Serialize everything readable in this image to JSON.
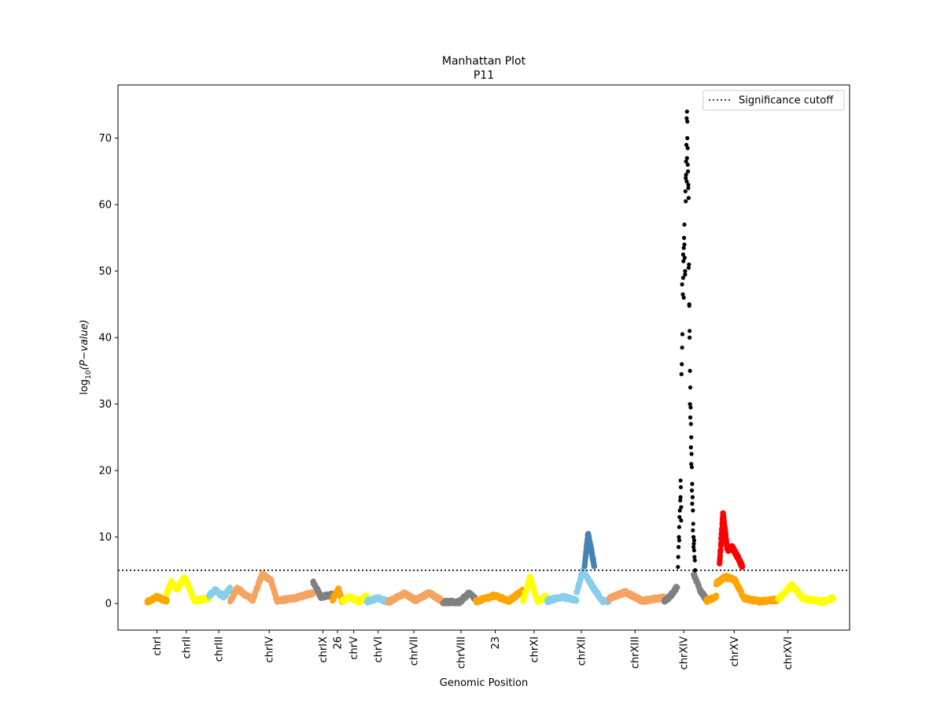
{
  "chart_data": {
    "type": "scatter",
    "title": "Manhattan Plot",
    "subtitle": "P11",
    "xlabel": "Genomic Position",
    "ylabel_parts": {
      "base": "log",
      "sub": "10",
      "expr": "(P−value)"
    },
    "ylim": [
      -4,
      78
    ],
    "yticks": [
      0,
      10,
      20,
      30,
      40,
      50,
      60,
      70
    ],
    "xlim": [
      -6,
      219
    ],
    "xticks": [
      {
        "label": "chrI",
        "pos": 6
      },
      {
        "label": "chrII",
        "pos": 15
      },
      {
        "label": "chrIII",
        "pos": 25
      },
      {
        "label": "chrIV",
        "pos": 40.5
      },
      {
        "label": "chrIX",
        "pos": 57
      },
      {
        "label": "26",
        "pos": 61.5
      },
      {
        "label": "chrV",
        "pos": 66.5
      },
      {
        "label": "chrVI",
        "pos": 74
      },
      {
        "label": "chrVII",
        "pos": 85
      },
      {
        "label": "chrVIII",
        "pos": 99.5
      },
      {
        "label": "23",
        "pos": 110
      },
      {
        "label": "chrXI",
        "pos": 122
      },
      {
        "label": "chrXII",
        "pos": 136.5
      },
      {
        "label": "chrXIII",
        "pos": 153
      },
      {
        "label": "chrXIV",
        "pos": 168
      },
      {
        "label": "chrXV",
        "pos": 183.5
      },
      {
        "label": "chrXVI",
        "pos": 200
      }
    ],
    "cutoff": {
      "y": 5,
      "label": "Significance cutoff",
      "style": "dotted",
      "color": "#000000"
    },
    "legend_position": "top-right",
    "point_color_significant_chrXIV": "#000000",
    "point_color_significant_chrXII": "#4682b4",
    "point_color_significant_chrXV": "#ff0000",
    "chromosomes": [
      {
        "name": "chrI",
        "x": [
          3,
          9
        ],
        "color": "#ffa500",
        "profile": [
          [
            0,
            0.2
          ],
          [
            0.5,
            1.0
          ],
          [
            1,
            0.4
          ]
        ]
      },
      {
        "name": "chrI-b",
        "x": [
          9,
          12.5
        ],
        "color": "#ffff00",
        "profile": [
          [
            0,
            1.5
          ],
          [
            0.4,
            3.2
          ],
          [
            1,
            2.0
          ]
        ]
      },
      {
        "name": "chrII",
        "x": [
          12.5,
          17.5
        ],
        "color": "#ffff00",
        "profile": [
          [
            0,
            2.5
          ],
          [
            0.4,
            4.0
          ],
          [
            1,
            0.4
          ]
        ]
      },
      {
        "name": "chrII-b",
        "x": [
          17.5,
          22
        ],
        "color": "#ffff00",
        "profile": [
          [
            0,
            0.4
          ],
          [
            1,
            0.8
          ]
        ]
      },
      {
        "name": "chrIII",
        "x": [
          22,
          28.5
        ],
        "color": "#87ceeb",
        "profile": [
          [
            0,
            1.2
          ],
          [
            0.3,
            2.0
          ],
          [
            0.7,
            1.0
          ],
          [
            1,
            2.3
          ]
        ]
      },
      {
        "name": "chrIV-a",
        "x": [
          28.5,
          35.5
        ],
        "color": "#f4a460",
        "profile": [
          [
            0,
            0.4
          ],
          [
            0.3,
            2.3
          ],
          [
            0.7,
            1.2
          ],
          [
            1,
            0.6
          ]
        ]
      },
      {
        "name": "chrIV",
        "x": [
          35.5,
          54
        ],
        "color": "#f4a460",
        "profile": [
          [
            0,
            0.6
          ],
          [
            0.15,
            4.4
          ],
          [
            0.3,
            3.5
          ],
          [
            0.4,
            0.4
          ],
          [
            0.7,
            0.8
          ],
          [
            1,
            1.6
          ]
        ]
      },
      {
        "name": "chrIX",
        "x": [
          54,
          60
        ],
        "color": "#808080",
        "profile": [
          [
            0,
            3.3
          ],
          [
            0.4,
            1.0
          ],
          [
            1,
            1.4
          ]
        ]
      },
      {
        "name": "26",
        "x": [
          60,
          63
        ],
        "color": "#ffa500",
        "profile": [
          [
            0,
            0.6
          ],
          [
            0.6,
            2.2
          ],
          [
            1,
            0.3
          ]
        ]
      },
      {
        "name": "chrV",
        "x": [
          63,
          70.5
        ],
        "color": "#ffff00",
        "profile": [
          [
            0,
            0.3
          ],
          [
            0.3,
            1.0
          ],
          [
            0.7,
            0.3
          ],
          [
            1,
            1.1
          ]
        ]
      },
      {
        "name": "chrVI",
        "x": [
          70.5,
          77
        ],
        "color": "#87ceeb",
        "profile": [
          [
            0,
            0.3
          ],
          [
            0.5,
            0.8
          ],
          [
            1,
            0.3
          ]
        ]
      },
      {
        "name": "chrVII",
        "x": [
          77,
          94
        ],
        "color": "#f4a460",
        "profile": [
          [
            0,
            0.2
          ],
          [
            0.3,
            1.5
          ],
          [
            0.5,
            0.5
          ],
          [
            0.75,
            1.6
          ],
          [
            1,
            0.3
          ]
        ]
      },
      {
        "name": "chrVIII",
        "x": [
          94,
          104
        ],
        "color": "#808080",
        "profile": [
          [
            0,
            0.2
          ],
          [
            0.5,
            0.2
          ],
          [
            0.8,
            1.6
          ],
          [
            1,
            0.6
          ]
        ]
      },
      {
        "name": "23",
        "x": [
          104,
          118.5
        ],
        "color": "#ffa500",
        "profile": [
          [
            0,
            0.3
          ],
          [
            0.4,
            1.2
          ],
          [
            0.7,
            0.4
          ],
          [
            1,
            1.9
          ]
        ]
      },
      {
        "name": "chrXI",
        "x": [
          118.5,
          126
        ],
        "color": "#ffff00",
        "profile": [
          [
            0,
            0.4
          ],
          [
            0.3,
            4.0
          ],
          [
            0.6,
            0.3
          ],
          [
            1,
            1.1
          ]
        ]
      },
      {
        "name": "chrXII-a",
        "x": [
          126,
          135
        ],
        "color": "#87ceeb",
        "profile": [
          [
            0,
            0.4
          ],
          [
            0.5,
            1.0
          ],
          [
            1,
            0.5
          ]
        ]
      },
      {
        "name": "chrXII",
        "x": [
          135,
          145
        ],
        "color": "#87ceeb",
        "profile": [
          [
            0,
            1.5
          ],
          [
            0.2,
            5.0
          ],
          [
            0.5,
            2.5
          ],
          [
            0.8,
            0.4
          ],
          [
            1,
            0.3
          ]
        ]
      },
      {
        "name": "chrXIII",
        "x": [
          145,
          162
        ],
        "color": "#f4a460",
        "profile": [
          [
            0,
            0.8
          ],
          [
            0.3,
            1.7
          ],
          [
            0.6,
            0.4
          ],
          [
            1,
            0.9
          ]
        ]
      },
      {
        "name": "chrXIV-a",
        "x": [
          162,
          166
        ],
        "color": "#808080",
        "profile": [
          [
            0,
            0.3
          ],
          [
            0.5,
            1.2
          ],
          [
            1,
            2.5
          ]
        ]
      },
      {
        "name": "chrXIV-b",
        "x": [
          171,
          175
        ],
        "color": "#808080",
        "profile": [
          [
            0,
            4.5
          ],
          [
            0.5,
            2.0
          ],
          [
            1,
            0.6
          ]
        ]
      },
      {
        "name": "chrXV-a",
        "x": [
          175,
          178
        ],
        "color": "#ffa500",
        "profile": [
          [
            0,
            0.4
          ],
          [
            1,
            1.0
          ]
        ]
      },
      {
        "name": "chrXV",
        "x": [
          178,
          197
        ],
        "color": "#ffa500",
        "profile": [
          [
            0,
            3.0
          ],
          [
            0.15,
            4.0
          ],
          [
            0.3,
            3.5
          ],
          [
            0.45,
            0.8
          ],
          [
            0.7,
            0.3
          ],
          [
            1,
            0.6
          ]
        ]
      },
      {
        "name": "chrXVI",
        "x": [
          197,
          214
        ],
        "color": "#ffff00",
        "profile": [
          [
            0,
            0.6
          ],
          [
            0.25,
            2.8
          ],
          [
            0.45,
            0.7
          ],
          [
            0.8,
            0.3
          ],
          [
            1,
            0.8
          ]
        ]
      }
    ],
    "significant_peaks": [
      {
        "name": "chrXII-peak",
        "x": [
          137.5,
          140.5
        ],
        "color": "#4682b4",
        "profile": [
          [
            0,
            5.5
          ],
          [
            0.35,
            10.5
          ],
          [
            0.7,
            8.0
          ],
          [
            1,
            5.5
          ]
        ]
      },
      {
        "name": "chrXV-peak",
        "x": [
          179,
          186
        ],
        "color": "#ff0000",
        "profile": [
          [
            0,
            6.0
          ],
          [
            0.15,
            13.5
          ],
          [
            0.35,
            8.0
          ],
          [
            0.55,
            8.5
          ],
          [
            0.8,
            7.0
          ],
          [
            1,
            5.5
          ]
        ]
      }
    ],
    "chrXIV_points": [
      [
        166.2,
        5.5
      ],
      [
        166.3,
        7.0
      ],
      [
        166.4,
        8.5
      ],
      [
        166.5,
        10.0
      ],
      [
        166.6,
        11.5
      ],
      [
        166.7,
        13.0
      ],
      [
        166.8,
        14.0
      ],
      [
        166.9,
        15.5
      ],
      [
        167.0,
        18.5
      ],
      [
        167.1,
        17.5
      ],
      [
        167.2,
        12.5
      ],
      [
        167.3,
        34.5
      ],
      [
        167.4,
        36.0
      ],
      [
        167.5,
        38.5
      ],
      [
        167.6,
        40.5
      ],
      [
        167.7,
        46.5
      ],
      [
        167.8,
        49.0
      ],
      [
        167.9,
        51.5
      ],
      [
        168.0,
        53.5
      ],
      [
        168.1,
        55.0
      ],
      [
        168.2,
        57.0
      ],
      [
        168.3,
        52.0
      ],
      [
        168.4,
        50.0
      ],
      [
        168.5,
        62.0
      ],
      [
        168.6,
        64.0
      ],
      [
        168.7,
        66.5
      ],
      [
        168.8,
        69.0
      ],
      [
        168.9,
        73.0
      ],
      [
        169.0,
        74.0
      ],
      [
        169.1,
        72.5
      ],
      [
        169.2,
        68.5
      ],
      [
        169.3,
        65.0
      ],
      [
        169.4,
        63.0
      ],
      [
        169.5,
        61.0
      ],
      [
        169.6,
        51.0
      ],
      [
        169.7,
        45.0
      ],
      [
        169.8,
        41.0
      ],
      [
        169.9,
        35.0
      ],
      [
        170.0,
        32.5
      ],
      [
        170.1,
        29.5
      ],
      [
        170.2,
        27.0
      ],
      [
        170.3,
        25.0
      ],
      [
        170.4,
        22.5
      ],
      [
        170.5,
        20.5
      ],
      [
        170.6,
        18.0
      ],
      [
        170.7,
        16.0
      ],
      [
        170.8,
        14.0
      ],
      [
        170.9,
        12.0
      ],
      [
        171.0,
        10.0
      ],
      [
        171.1,
        9.0
      ],
      [
        171.2,
        8.0
      ],
      [
        171.3,
        7.0
      ],
      [
        171.4,
        6.5
      ],
      [
        171.5,
        5.0
      ],
      [
        167.5,
        48.0
      ],
      [
        168.0,
        46.0
      ],
      [
        168.6,
        60.5
      ],
      [
        169.0,
        67.0
      ],
      [
        169.4,
        62.5
      ],
      [
        169.8,
        40.0
      ],
      [
        170.0,
        28.0
      ],
      [
        170.2,
        23.5
      ],
      [
        170.5,
        17.0
      ],
      [
        170.8,
        11.0
      ],
      [
        166.6,
        9.5
      ],
      [
        167.0,
        16.0
      ],
      [
        168.2,
        54.0
      ],
      [
        168.7,
        64.5
      ],
      [
        169.5,
        50.5
      ],
      [
        169.9,
        30.0
      ],
      [
        170.3,
        21.0
      ],
      [
        171.0,
        8.5
      ],
      [
        167.2,
        14.5
      ],
      [
        167.8,
        52.5
      ],
      [
        168.4,
        49.5
      ],
      [
        169.2,
        66.0
      ],
      [
        169.7,
        44.8
      ],
      [
        170.6,
        15.0
      ],
      [
        171.2,
        9.5
      ],
      [
        168.9,
        63.5
      ],
      [
        169.1,
        70.0
      ]
    ]
  }
}
